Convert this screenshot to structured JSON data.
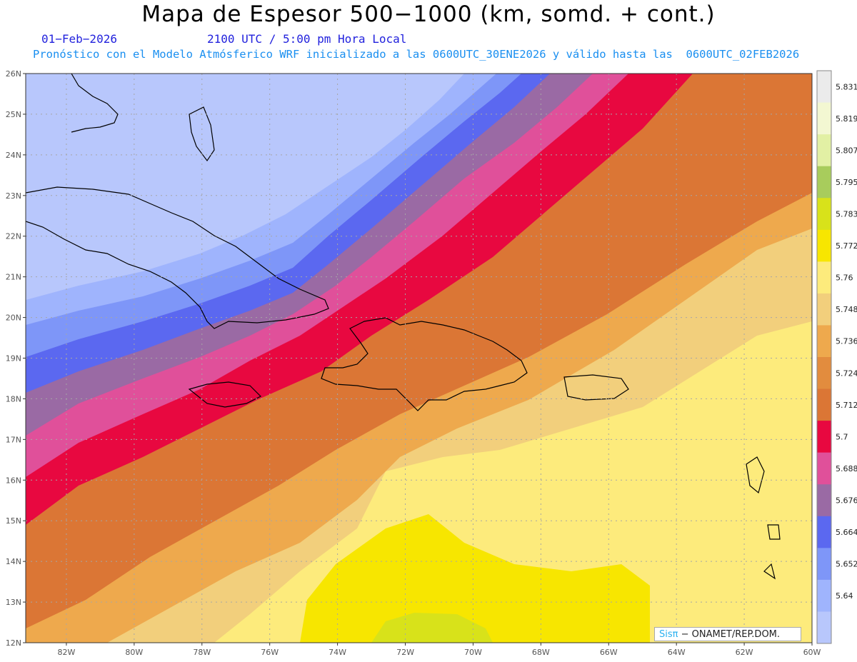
{
  "header": {
    "title": "Mapa de Espesor 500−1000 (km, somd. + cont.)",
    "date": "01−Feb−2026",
    "time": "2100 UTC / 5:00 pm Hora Local",
    "model_line": "Pronóstico con el Modelo Atmósferico WRF inicializado a las 0600UTC_30ENE2026 y válido hasta las  0600UTC_02FEB2026"
  },
  "map": {
    "lat_labels": [
      "26N",
      "25N",
      "24N",
      "23N",
      "22N",
      "21N",
      "20N",
      "19N",
      "18N",
      "17N",
      "16N",
      "15N",
      "14N",
      "13N",
      "12N"
    ],
    "lon_labels": [
      "82W",
      "80W",
      "78W",
      "76W",
      "74W",
      "72W",
      "70W",
      "68W",
      "66W",
      "64W",
      "62W",
      "60W"
    ],
    "lat_range": [
      12,
      26
    ],
    "lon_range": [
      -83.2,
      -60
    ],
    "grid": true
  },
  "colorbar": {
    "labels": [
      "5.831",
      "5.819",
      "5.807",
      "5.795",
      "5.783",
      "5.772",
      "5.76",
      "5.748",
      "5.736",
      "5.724",
      "5.712",
      "5.7",
      "5.688",
      "5.676",
      "5.664",
      "5.652",
      "5.64"
    ],
    "colors": [
      "#ebebeb",
      "#f3f7d2",
      "#e2f0a4",
      "#a8cc5c",
      "#d8e21a",
      "#f7e600",
      "#fdeb7c",
      "#f2cf7c",
      "#eea94d",
      "#e28c3e",
      "#db7635",
      "#e80840",
      "#e0509a",
      "#9a6aa4",
      "#5b68f0",
      "#7e96f8",
      "#9fb4fd",
      "#b8c7fc"
    ]
  },
  "credit": {
    "brand": "Sisπ",
    "org": "− ONAMET/REP.DOM."
  }
}
